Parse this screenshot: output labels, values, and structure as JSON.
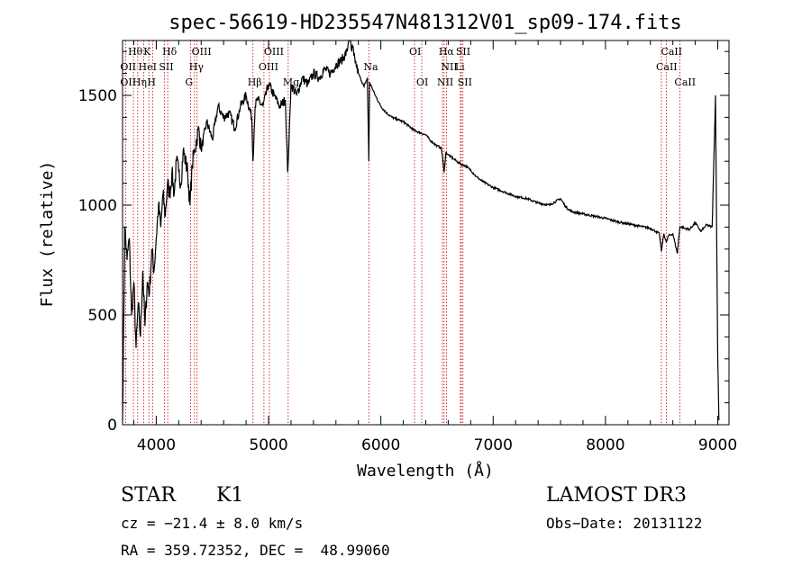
{
  "chart_data": {
    "type": "line",
    "title": "spec-56619-HD235547N481312V01_sp09-174.fits",
    "xlabel": "Wavelength (Å)",
    "ylabel": "Flux (relative)",
    "xlim": [
      3700,
      9100
    ],
    "ylim": [
      0,
      1750
    ],
    "xticks": [
      4000,
      5000,
      6000,
      7000,
      8000,
      9000
    ],
    "yticks": [
      0,
      500,
      1000,
      1500
    ],
    "xtick_labels": [
      "4000",
      "5000",
      "6000",
      "7000",
      "8000",
      "9000"
    ],
    "ytick_labels": [
      "0",
      "500",
      "1000",
      "1500"
    ],
    "series": [
      {
        "name": "flux",
        "x": [
          3700,
          3720,
          3740,
          3760,
          3780,
          3800,
          3820,
          3840,
          3860,
          3880,
          3900,
          3920,
          3940,
          3960,
          3980,
          4000,
          4020,
          4040,
          4060,
          4080,
          4100,
          4120,
          4140,
          4160,
          4180,
          4200,
          4220,
          4240,
          4260,
          4280,
          4300,
          4320,
          4340,
          4360,
          4380,
          4400,
          4450,
          4500,
          4550,
          4600,
          4650,
          4700,
          4750,
          4800,
          4850,
          4861,
          4880,
          4900,
          4950,
          5000,
          5050,
          5100,
          5150,
          5170,
          5183,
          5200,
          5250,
          5300,
          5350,
          5400,
          5450,
          5500,
          5550,
          5600,
          5650,
          5700,
          5720,
          5740,
          5750,
          5760,
          5780,
          5800,
          5850,
          5880,
          5893,
          5900,
          5950,
          6000,
          6050,
          6100,
          6150,
          6200,
          6250,
          6300,
          6350,
          6400,
          6450,
          6500,
          6540,
          6563,
          6580,
          6600,
          6650,
          6700,
          6750,
          6800,
          6850,
          6900,
          7000,
          7100,
          7200,
          7300,
          7400,
          7500,
          7600,
          7650,
          7700,
          7800,
          7900,
          8000,
          8100,
          8200,
          8300,
          8400,
          8450,
          8480,
          8498,
          8520,
          8542,
          8560,
          8600,
          8640,
          8662,
          8680,
          8700,
          8750,
          8800,
          8850,
          8900,
          8950,
          8980,
          9000,
          9010
        ],
        "y": [
          20,
          900,
          750,
          850,
          500,
          650,
          350,
          550,
          400,
          700,
          450,
          650,
          600,
          800,
          700,
          850,
          1000,
          900,
          1050,
          950,
          1100,
          1050,
          1150,
          1050,
          1200,
          1150,
          1100,
          1250,
          1200,
          1150,
          1000,
          1180,
          1250,
          1300,
          1350,
          1250,
          1380,
          1300,
          1450,
          1400,
          1420,
          1350,
          1450,
          1500,
          1400,
          1200,
          1450,
          1480,
          1450,
          1550,
          1500,
          1450,
          1480,
          1150,
          1300,
          1550,
          1500,
          1580,
          1550,
          1600,
          1580,
          1620,
          1600,
          1640,
          1660,
          1700,
          1790,
          1700,
          1720,
          1680,
          1640,
          1600,
          1540,
          1580,
          1200,
          1560,
          1500,
          1450,
          1420,
          1400,
          1390,
          1380,
          1360,
          1340,
          1330,
          1320,
          1290,
          1270,
          1260,
          1150,
          1240,
          1230,
          1210,
          1190,
          1180,
          1160,
          1130,
          1110,
          1080,
          1060,
          1040,
          1030,
          1010,
          1000,
          1030,
          990,
          970,
          960,
          950,
          940,
          925,
          915,
          905,
          895,
          880,
          870,
          790,
          870,
          830,
          860,
          870,
          780,
          900,
          900,
          895,
          890,
          920,
          880,
          910,
          900,
          1500,
          300,
          20
        ]
      }
    ],
    "line_labels": [
      {
        "name": "Hδ",
        "x": 4102,
        "row": 1
      },
      {
        "name": "Hθ",
        "x": 3797,
        "row": 1
      },
      {
        "name": "K",
        "x": 3934,
        "row": 1
      },
      {
        "name": "OII",
        "x": 3727,
        "row": 2
      },
      {
        "name": "HeI",
        "x": 3889,
        "row": 2
      },
      {
        "name": "SII",
        "x": 4072,
        "row": 2
      },
      {
        "name": "OII",
        "x": 3727,
        "row": 3
      },
      {
        "name": "Hη",
        "x": 3835,
        "row": 3
      },
      {
        "name": "H",
        "x": 3968,
        "row": 3
      },
      {
        "name": "OIII",
        "x": 4363,
        "row": 1
      },
      {
        "name": "Hγ",
        "x": 4340,
        "row": 2
      },
      {
        "name": "G",
        "x": 4305,
        "row": 3
      },
      {
        "name": "OIII",
        "x": 5007,
        "row": 1
      },
      {
        "name": "OIII",
        "x": 4959,
        "row": 2
      },
      {
        "name": "Hβ",
        "x": 4861,
        "row": 3
      },
      {
        "name": "Mg",
        "x": 5175,
        "row": 3
      },
      {
        "name": "Na",
        "x": 5893,
        "row": 2
      },
      {
        "name": "OI",
        "x": 6300,
        "row": 1
      },
      {
        "name": "OI",
        "x": 6364,
        "row": 3
      },
      {
        "name": "Hα",
        "x": 6563,
        "row": 1
      },
      {
        "name": "SII",
        "x": 6716,
        "row": 1
      },
      {
        "name": "NII",
        "x": 6584,
        "row": 2
      },
      {
        "name": "Li",
        "x": 6708,
        "row": 2
      },
      {
        "name": "NII",
        "x": 6548,
        "row": 3
      },
      {
        "name": "SII",
        "x": 6731,
        "row": 3
      },
      {
        "name": "CaII",
        "x": 8542,
        "row": 1
      },
      {
        "name": "CaII",
        "x": 8498,
        "row": 2
      },
      {
        "name": "CaII",
        "x": 8662,
        "row": 3
      }
    ],
    "marker_lines": [
      3727,
      3797,
      3835,
      3889,
      3934,
      3968,
      4072,
      4102,
      4305,
      4340,
      4363,
      4861,
      4959,
      5007,
      5175,
      5893,
      6300,
      6364,
      6548,
      6563,
      6584,
      6708,
      6716,
      6731,
      8498,
      8542,
      8662
    ],
    "marker_color": "#cc0000",
    "line_color": "#000000"
  },
  "info": {
    "class": "STAR",
    "subclass": "K1",
    "survey": "LAMOST DR3",
    "cz": "cz = −21.4 ± 8.0 km/s",
    "obs_date": "Obs−Date: 20131122",
    "coords": "RA = 359.72352, DEC =  48.99060"
  }
}
